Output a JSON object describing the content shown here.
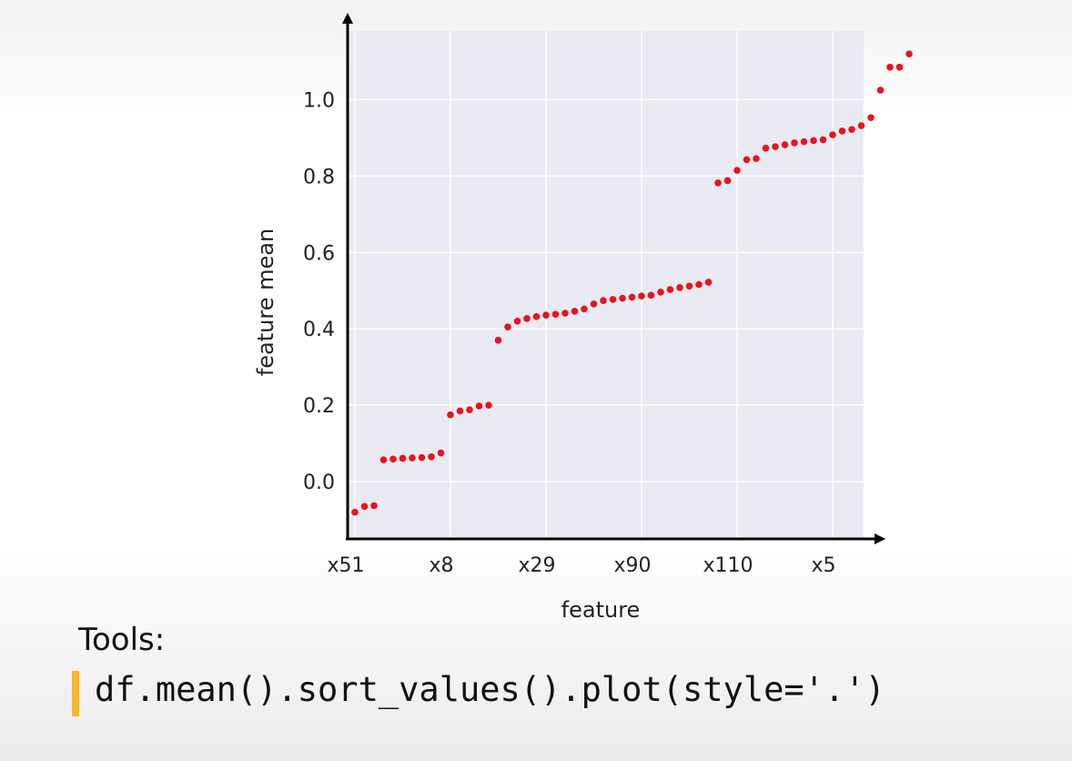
{
  "chart_data": {
    "type": "scatter",
    "xlabel": "feature",
    "ylabel": "feature mean",
    "x_tick_labels": [
      "x51",
      "x8",
      "x29",
      "x90",
      "x110",
      "x5"
    ],
    "y_ticks": [
      0.0,
      0.2,
      0.4,
      0.6,
      0.8,
      1.0
    ],
    "y_tick_labels": [
      "0.0",
      "0.2",
      "0.4",
      "0.6",
      "0.8",
      "1.0"
    ],
    "xlim": [
      0,
      54
    ],
    "ylim": [
      -0.15,
      1.18
    ],
    "grid": true,
    "marker_color": "#e8141e",
    "plot_background": "#e9eaf2",
    "values": [
      -0.08,
      -0.065,
      -0.063,
      0.057,
      0.059,
      0.061,
      0.062,
      0.063,
      0.065,
      0.075,
      0.175,
      0.185,
      0.188,
      0.198,
      0.2,
      0.37,
      0.405,
      0.42,
      0.427,
      0.432,
      0.436,
      0.438,
      0.441,
      0.446,
      0.452,
      0.465,
      0.474,
      0.477,
      0.48,
      0.483,
      0.486,
      0.488,
      0.496,
      0.503,
      0.508,
      0.512,
      0.516,
      0.522,
      0.782,
      0.788,
      0.815,
      0.843,
      0.846,
      0.873,
      0.877,
      0.882,
      0.887,
      0.89,
      0.893,
      0.895,
      0.908,
      0.918,
      0.922,
      0.932,
      0.953,
      1.025,
      1.085,
      1.085,
      1.12
    ]
  },
  "footer": {
    "tools_label": "Tools:",
    "code": "df.mean().sort_values().plot(style='.')"
  }
}
